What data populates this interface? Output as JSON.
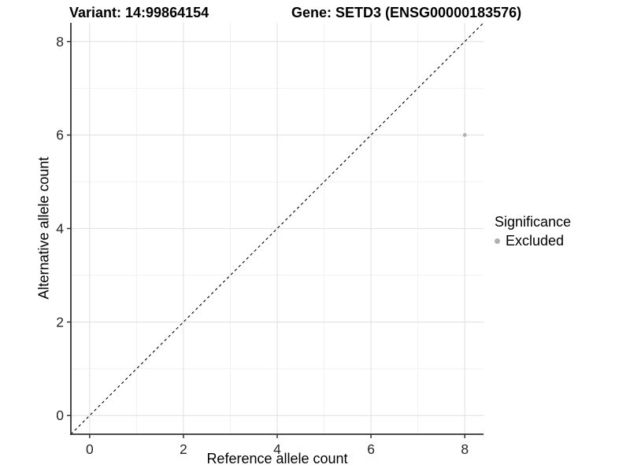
{
  "titles": {
    "variant": "Variant: 14:99864154",
    "gene": "Gene: SETD3 (ENSG00000183576)"
  },
  "chart_data": {
    "type": "scatter",
    "title_left": "Variant: 14:99864154",
    "title_right": "Gene: SETD3 (ENSG00000183576)",
    "xlabel": "Reference allele count",
    "ylabel": "Alternative allele count",
    "xlim": [
      -0.4,
      8.4
    ],
    "ylim": [
      -0.4,
      8.4
    ],
    "x_major_ticks": [
      0,
      2,
      4,
      6,
      8
    ],
    "y_major_ticks": [
      0,
      2,
      4,
      6,
      8
    ],
    "x_minor_ticks": [
      1,
      3,
      5,
      7
    ],
    "y_minor_ticks": [
      1,
      3,
      5,
      7
    ],
    "grid": true,
    "series": [
      {
        "name": "Excluded",
        "points": [
          {
            "x": 8,
            "y": 6
          }
        ],
        "color": "#b0b0b0",
        "point_radius": 2.4
      }
    ],
    "reference_line": {
      "description": "identity line y = x",
      "slope": 1,
      "intercept": 0,
      "style": "dashed",
      "color": "#000000"
    },
    "legend": {
      "title": "Significance",
      "position": "right",
      "entries": [
        {
          "label": "Excluded",
          "color": "#b0b0b0"
        }
      ]
    },
    "colors": {
      "background": "#ffffff",
      "axis_line": "#333333",
      "tick_text": "#262626",
      "grid_major": "#e4e4e4",
      "grid_minor": "#f1f1f1"
    }
  }
}
